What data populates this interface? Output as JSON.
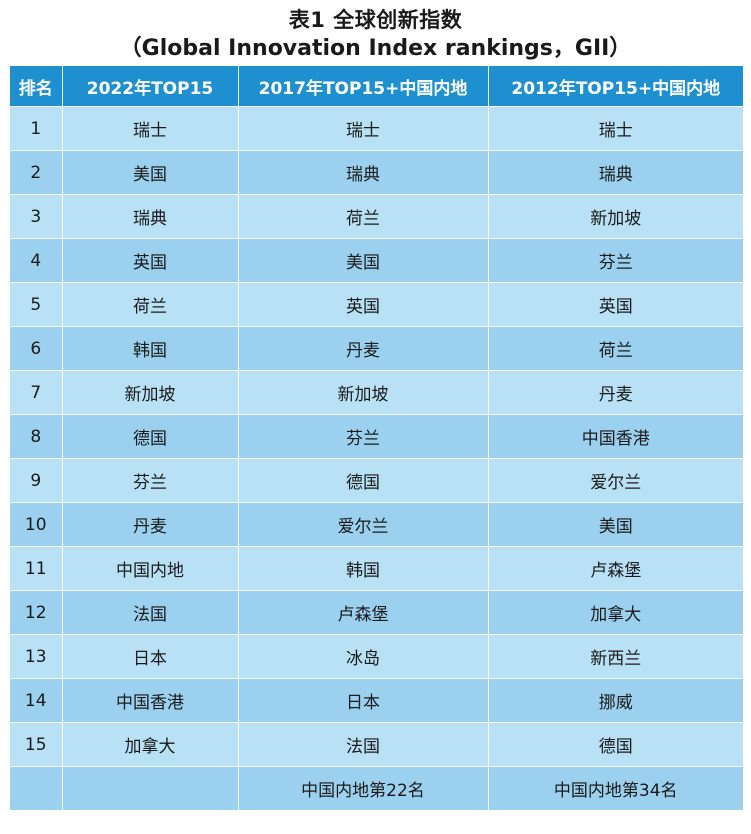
{
  "title": {
    "line1": "表1 全球创新指数",
    "line2": "（Global Innovation Index rankings，GII）"
  },
  "table": {
    "headers": [
      "排名",
      "2022年TOP15",
      "2017年TOP15+中国内地",
      "2012年TOP15+中国内地"
    ],
    "rows": [
      [
        "1",
        "瑞士",
        "瑞士",
        "瑞士"
      ],
      [
        "2",
        "美国",
        "瑞典",
        "瑞典"
      ],
      [
        "3",
        "瑞典",
        "荷兰",
        "新加坡"
      ],
      [
        "4",
        "英国",
        "美国",
        "芬兰"
      ],
      [
        "5",
        "荷兰",
        "英国",
        "英国"
      ],
      [
        "6",
        "韩国",
        "丹麦",
        "荷兰"
      ],
      [
        "7",
        "新加坡",
        "新加坡",
        "丹麦"
      ],
      [
        "8",
        "德国",
        "芬兰",
        "中国香港"
      ],
      [
        "9",
        "芬兰",
        "德国",
        "爱尔兰"
      ],
      [
        "10",
        "丹麦",
        "爱尔兰",
        "美国"
      ],
      [
        "11",
        "中国内地",
        "韩国",
        "卢森堡"
      ],
      [
        "12",
        "法国",
        "卢森堡",
        "加拿大"
      ],
      [
        "13",
        "日本",
        "冰岛",
        "新西兰"
      ],
      [
        "14",
        "中国香港",
        "日本",
        "挪威"
      ],
      [
        "15",
        "加拿大",
        "法国",
        "德国"
      ],
      [
        "",
        "",
        "中国内地第22名",
        "中国内地第34名"
      ]
    ]
  },
  "colors": {
    "header_bg": "#1e90d0",
    "row_light": "#b9e1f6",
    "row_dark": "#9bd1ef"
  }
}
